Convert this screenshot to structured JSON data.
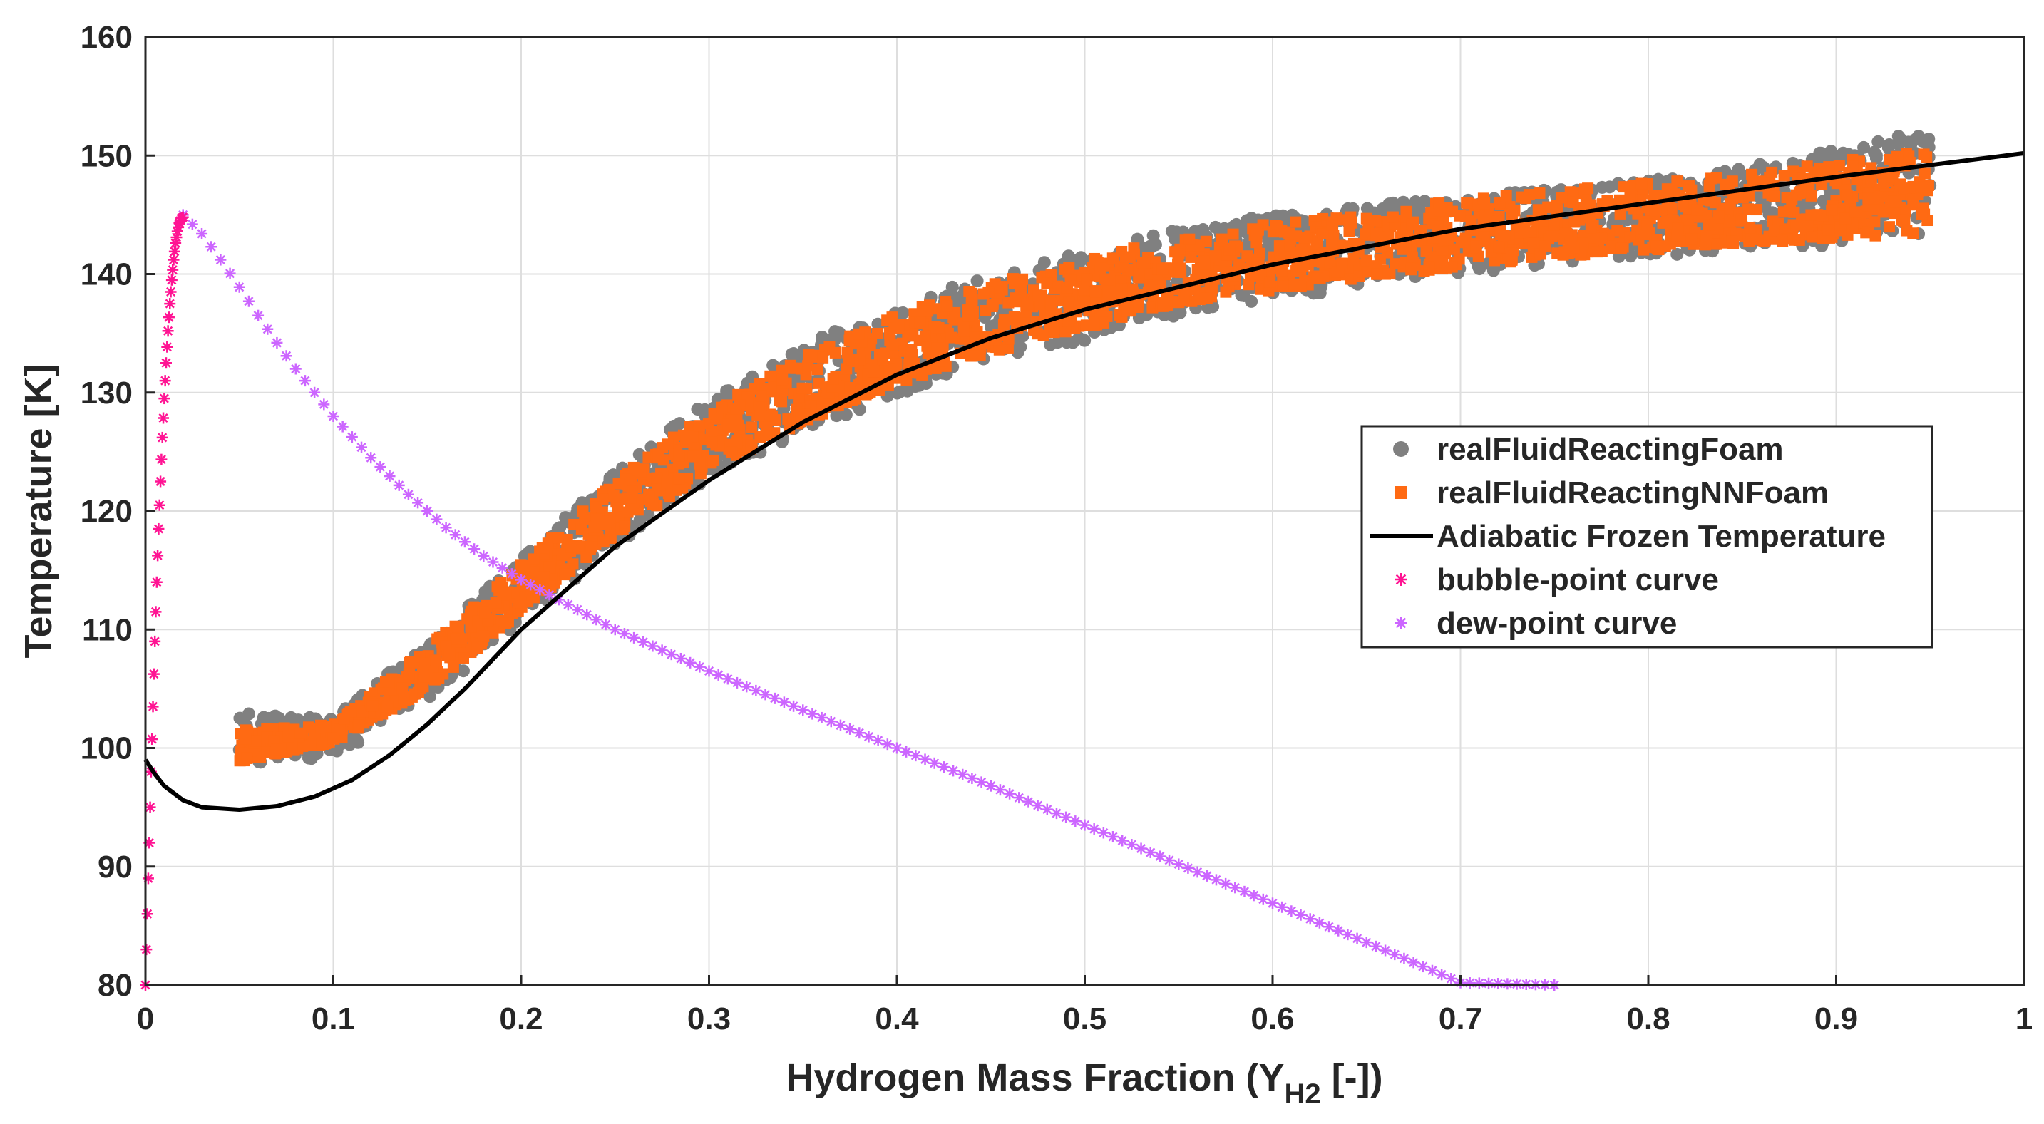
{
  "chart_data": {
    "type": "scatter",
    "title": "",
    "xlabel": "Hydrogen Mass Fraction (Y",
    "xlabel_sub": "H2",
    "xlabel_tail": " [-])",
    "ylabel": "Temperature [K]",
    "xlim": [
      0,
      1
    ],
    "ylim": [
      80,
      160
    ],
    "grid": true,
    "x_ticks": [
      0,
      0.1,
      0.2,
      0.3,
      0.4,
      0.5,
      0.6,
      0.7,
      0.8,
      0.9,
      1
    ],
    "x_tick_labels": [
      "0",
      "0.1",
      "0.2",
      "0.3",
      "0.4",
      "0.5",
      "0.6",
      "0.7",
      "0.8",
      "0.9",
      "1"
    ],
    "y_ticks": [
      80,
      90,
      100,
      110,
      120,
      130,
      140,
      150,
      160
    ],
    "y_tick_labels": [
      "80",
      "90",
      "100",
      "110",
      "120",
      "130",
      "140",
      "150",
      "160"
    ],
    "legend_position": "center-right",
    "series": [
      {
        "name": "realFluidReactingFoam",
        "marker": "circle",
        "color": "#808080",
        "x": [
          0.05,
          0.1,
          0.15,
          0.2,
          0.25,
          0.3,
          0.35,
          0.4,
          0.45,
          0.5,
          0.55,
          0.6,
          0.65,
          0.7,
          0.75,
          0.8,
          0.85,
          0.9,
          0.95
        ],
        "y_lower": [
          98.5,
          99.2,
          104.0,
          110.5,
          117.0,
          122.5,
          126.5,
          129.8,
          132.3,
          134.4,
          136.3,
          137.8,
          139.0,
          140.0,
          140.8,
          141.5,
          141.9,
          142.3,
          142.6
        ],
        "y_upper": [
          103.0,
          102.5,
          109.0,
          116.0,
          123.5,
          129.5,
          134.0,
          137.5,
          140.0,
          142.0,
          143.8,
          145.0,
          145.8,
          146.5,
          147.2,
          148.0,
          149.0,
          150.5,
          152.5
        ]
      },
      {
        "name": "realFluidReactingNNFoam",
        "marker": "square",
        "color": "#ff6a13",
        "x": [
          0.05,
          0.1,
          0.15,
          0.2,
          0.25,
          0.3,
          0.35,
          0.4,
          0.45,
          0.5,
          0.55,
          0.6,
          0.65,
          0.7,
          0.75,
          0.8,
          0.85,
          0.9,
          0.95
        ],
        "y_lower": [
          98.8,
          100.5,
          105.0,
          111.5,
          118.0,
          123.5,
          127.5,
          130.8,
          133.3,
          135.4,
          137.3,
          138.6,
          139.7,
          140.6,
          141.4,
          142.0,
          142.6,
          143.0,
          143.5
        ],
        "y_upper": [
          101.5,
          102.0,
          108.5,
          115.5,
          122.5,
          128.5,
          133.0,
          136.6,
          139.2,
          141.3,
          143.0,
          144.3,
          145.3,
          146.2,
          147.0,
          147.7,
          148.5,
          149.5,
          150.5
        ]
      },
      {
        "name": "Adiabatic Frozen Temperature",
        "marker": "line",
        "color": "#000000",
        "x": [
          0,
          0.005,
          0.01,
          0.02,
          0.03,
          0.05,
          0.07,
          0.09,
          0.11,
          0.13,
          0.15,
          0.17,
          0.2,
          0.25,
          0.3,
          0.35,
          0.4,
          0.45,
          0.5,
          0.6,
          0.7,
          0.8,
          0.9,
          1.0
        ],
        "y": [
          99.0,
          97.8,
          96.8,
          95.6,
          95.0,
          94.8,
          95.1,
          95.9,
          97.3,
          99.4,
          102.0,
          105.0,
          110.0,
          117.0,
          122.6,
          127.5,
          131.5,
          134.6,
          137.0,
          140.8,
          143.8,
          146.0,
          148.2,
          150.2
        ]
      },
      {
        "name": "bubble-point curve",
        "marker": "asterisk",
        "color": "#ff1493",
        "x": [
          0.0,
          0.001,
          0.002,
          0.003,
          0.004,
          0.005,
          0.006,
          0.007,
          0.008,
          0.009,
          0.01,
          0.011,
          0.012,
          0.013,
          0.014,
          0.015,
          0.016,
          0.017,
          0.018,
          0.019,
          0.02
        ],
        "y": [
          80.0,
          86.0,
          92.0,
          98.0,
          103.5,
          109.0,
          114.0,
          118.5,
          122.5,
          126.2,
          129.5,
          132.5,
          135.2,
          137.5,
          139.5,
          141.2,
          142.6,
          143.6,
          144.3,
          144.7,
          144.8
        ]
      },
      {
        "name": "dew-point curve",
        "marker": "asterisk",
        "color": "#cc66ff",
        "x": [
          0.02,
          0.03,
          0.04,
          0.05,
          0.06,
          0.07,
          0.08,
          0.09,
          0.1,
          0.12,
          0.14,
          0.16,
          0.18,
          0.2,
          0.25,
          0.3,
          0.35,
          0.4,
          0.45,
          0.5,
          0.55,
          0.6,
          0.65,
          0.7,
          0.75
        ],
        "y": [
          145.0,
          143.4,
          141.2,
          138.9,
          136.5,
          134.2,
          132.0,
          130.0,
          128.0,
          124.5,
          121.4,
          118.6,
          116.2,
          114.2,
          110.0,
          106.5,
          103.2,
          100.0,
          96.8,
          93.5,
          90.2,
          86.9,
          83.6,
          80.2,
          80.0
        ]
      }
    ]
  }
}
